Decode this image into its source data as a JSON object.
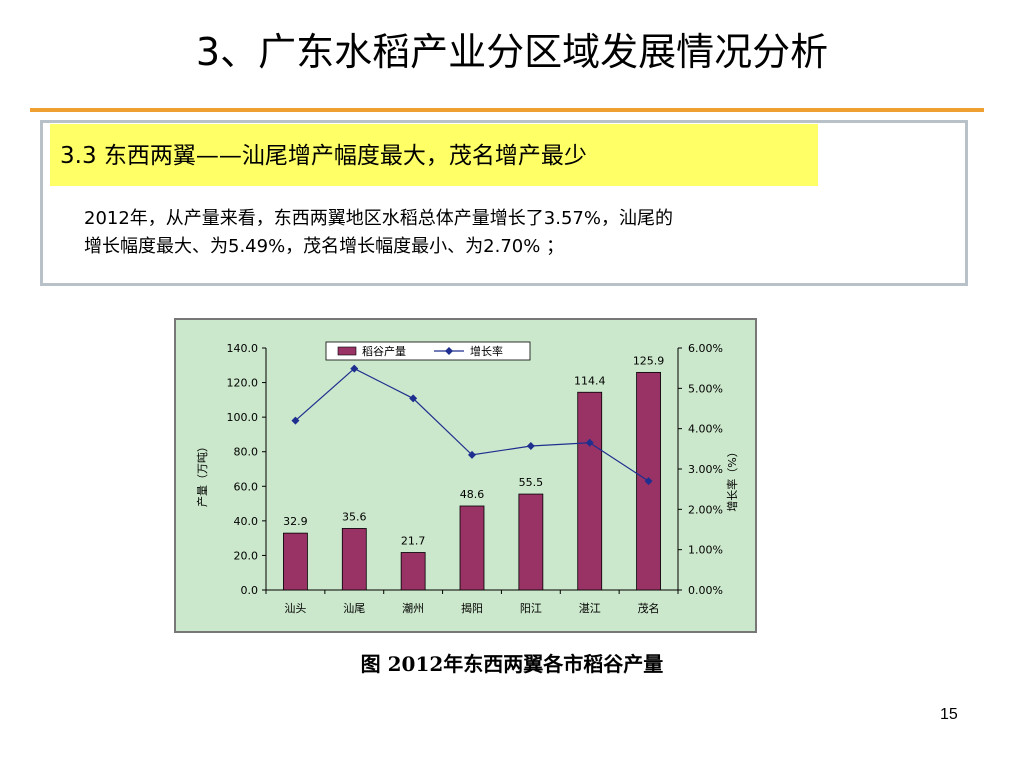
{
  "slide": {
    "title": "3、广东水稻产业分区域发展情况分析",
    "subtitle": "3.3  东西两翼——汕尾增产幅度最大，茂名增产最少",
    "body_line1": "2012年，从产量来看，东西两翼地区水稻总体产量增长了3.57%，汕尾的",
    "body_line2": "增长幅度最大、为5.49%，茂名增长幅度最小、为2.70% ；",
    "caption": "图  2012年东西两翼各市稻谷产量",
    "page_number": "15",
    "accent_color": "#f0a030",
    "highlight_color": "#ffff66"
  },
  "chart_data": {
    "type": "bar",
    "categories": [
      "汕头",
      "汕尾",
      "潮州",
      "揭阳",
      "阳江",
      "湛江",
      "茂名"
    ],
    "series": [
      {
        "name": "稻谷产量",
        "kind": "bar",
        "axis": "left",
        "values": [
          32.9,
          35.6,
          21.7,
          48.6,
          55.5,
          114.4,
          125.9
        ],
        "labels": [
          "32.9",
          "35.6",
          "21.7",
          "48.6",
          "55.5",
          "114.4",
          "125.9"
        ],
        "color": "#993366"
      },
      {
        "name": "增长率",
        "kind": "line",
        "axis": "right",
        "values": [
          4.2,
          5.49,
          4.75,
          3.35,
          3.57,
          3.65,
          2.7
        ],
        "color": "#1f2f8f"
      }
    ],
    "ylabel": "产量（万吨）",
    "y2label": "增长率（%）",
    "ylim": [
      0,
      140
    ],
    "y2lim": [
      0,
      6
    ],
    "yticks": [
      "0.0",
      "20.0",
      "40.0",
      "60.0",
      "80.0",
      "100.0",
      "120.0",
      "140.0"
    ],
    "y2ticks": [
      "0.00%",
      "1.00%",
      "2.00%",
      "3.00%",
      "4.00%",
      "5.00%",
      "6.00%"
    ],
    "legend_position": "top-center",
    "plot_background": "#cce8cc",
    "grid": false
  }
}
